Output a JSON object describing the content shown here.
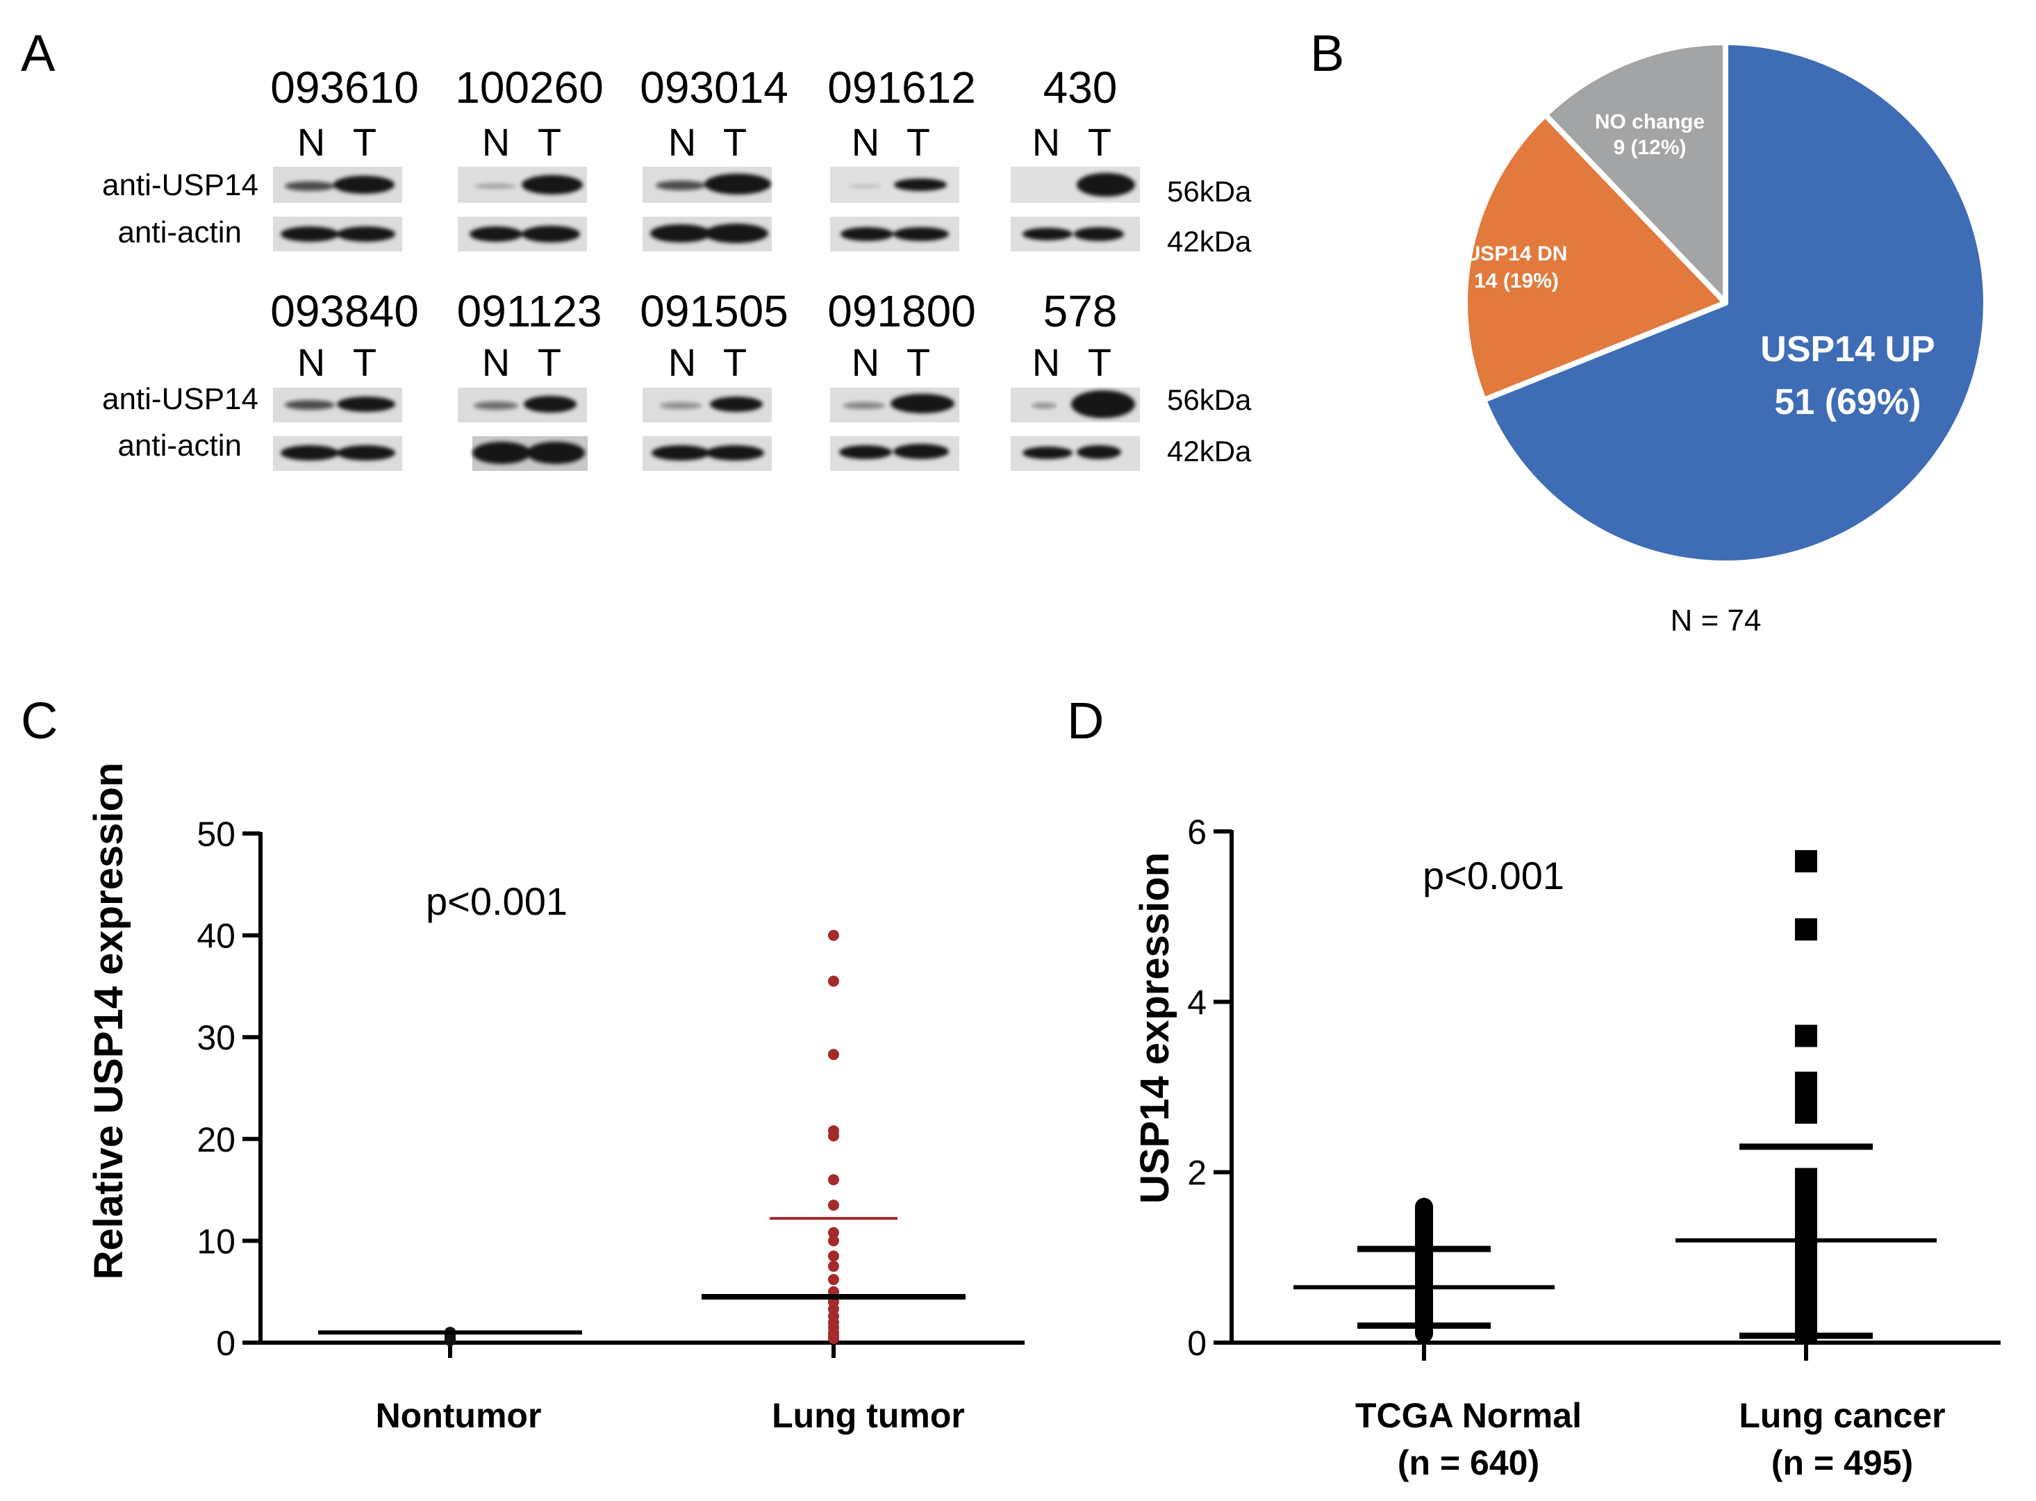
{
  "panels": {
    "a": "A",
    "b": "B",
    "c": "C",
    "d": "D"
  },
  "western_blot": {
    "rows": [
      {
        "samples": [
          "093610",
          "100260",
          "093014",
          "091612",
          "430"
        ],
        "lane_labels": [
          "N",
          "T"
        ],
        "antibody_top": "anti-USP14",
        "antibody_bottom": "anti-actin",
        "mw_top": "56kDa",
        "mw_bottom": "42kDa"
      },
      {
        "samples": [
          "093840",
          "091123",
          "091505",
          "091800",
          "578"
        ],
        "lane_labels": [
          "N",
          "T"
        ],
        "antibody_top": "anti-USP14",
        "antibody_bottom": "anti-actin",
        "mw_top": "56kDa",
        "mw_bottom": "42kDa"
      }
    ]
  },
  "pie": {
    "total_label": "N = 74",
    "slices": [
      {
        "name": "USP14 UP",
        "label_line1": "USP14 UP",
        "label_line2": "51 (69%)",
        "value": 51,
        "color": "#3f6db5"
      },
      {
        "name": "USP14 DN",
        "label_line1": "USP14 DN",
        "label_line2": "14 (19%)",
        "value": 14,
        "color": "#e17a3c"
      },
      {
        "name": "NO change",
        "label_line1": "NO change",
        "label_line2": "9 (12%)",
        "value": 9,
        "color": "#a3a4a6"
      }
    ]
  },
  "chart_data": [
    {
      "type": "scatter",
      "panel": "C",
      "title": "",
      "ylabel": "Relative USP14 expression",
      "xlabel": "",
      "categories": [
        "Nontumor",
        "Lung tumor"
      ],
      "ylim": [
        0,
        50
      ],
      "yticks": [
        0,
        10,
        20,
        30,
        40,
        50
      ],
      "annotation": "p<0.001",
      "series": [
        {
          "name": "Nontumor",
          "color": "#111111",
          "mean": 1,
          "sd_upper": null,
          "values": [
            1,
            1,
            1,
            1,
            1,
            1,
            0.8,
            0.6,
            0.4,
            0.2
          ]
        },
        {
          "name": "Lung tumor",
          "color": "#a52a2a",
          "mean": 4.5,
          "sd_upper": 12.2,
          "values": [
            40,
            35.5,
            28.3,
            20.8,
            20.3,
            16,
            13.5,
            10.8,
            10,
            8.5,
            7.5,
            6.2,
            5,
            4,
            3.3,
            2.6,
            2,
            1.5,
            1,
            0.7,
            0.4
          ]
        }
      ]
    },
    {
      "type": "scatter",
      "panel": "D",
      "title": "",
      "ylabel": "USP14 expression",
      "xlabel": "",
      "categories": [
        "TCGA Normal",
        "Lung cancer"
      ],
      "category_counts": [
        "(n = 640)",
        "(n = 495)"
      ],
      "ylim": [
        0,
        6
      ],
      "yticks": [
        0,
        2,
        4,
        6
      ],
      "annotation": "p<0.001",
      "series": [
        {
          "name": "TCGA Normal",
          "color": "#000000",
          "mean": 0.65,
          "sd_lower": 0.2,
          "sd_upper": 1.1,
          "range": [
            0,
            1.7
          ],
          "outliers": []
        },
        {
          "name": "Lung cancer",
          "color": "#000000",
          "mean": 1.2,
          "sd_lower": 0.08,
          "sd_upper": 2.3,
          "range": [
            0,
            2.05
          ],
          "outliers": [
            2.7,
            2.85,
            3.05,
            3.6,
            4.85,
            5.65
          ]
        }
      ]
    }
  ]
}
